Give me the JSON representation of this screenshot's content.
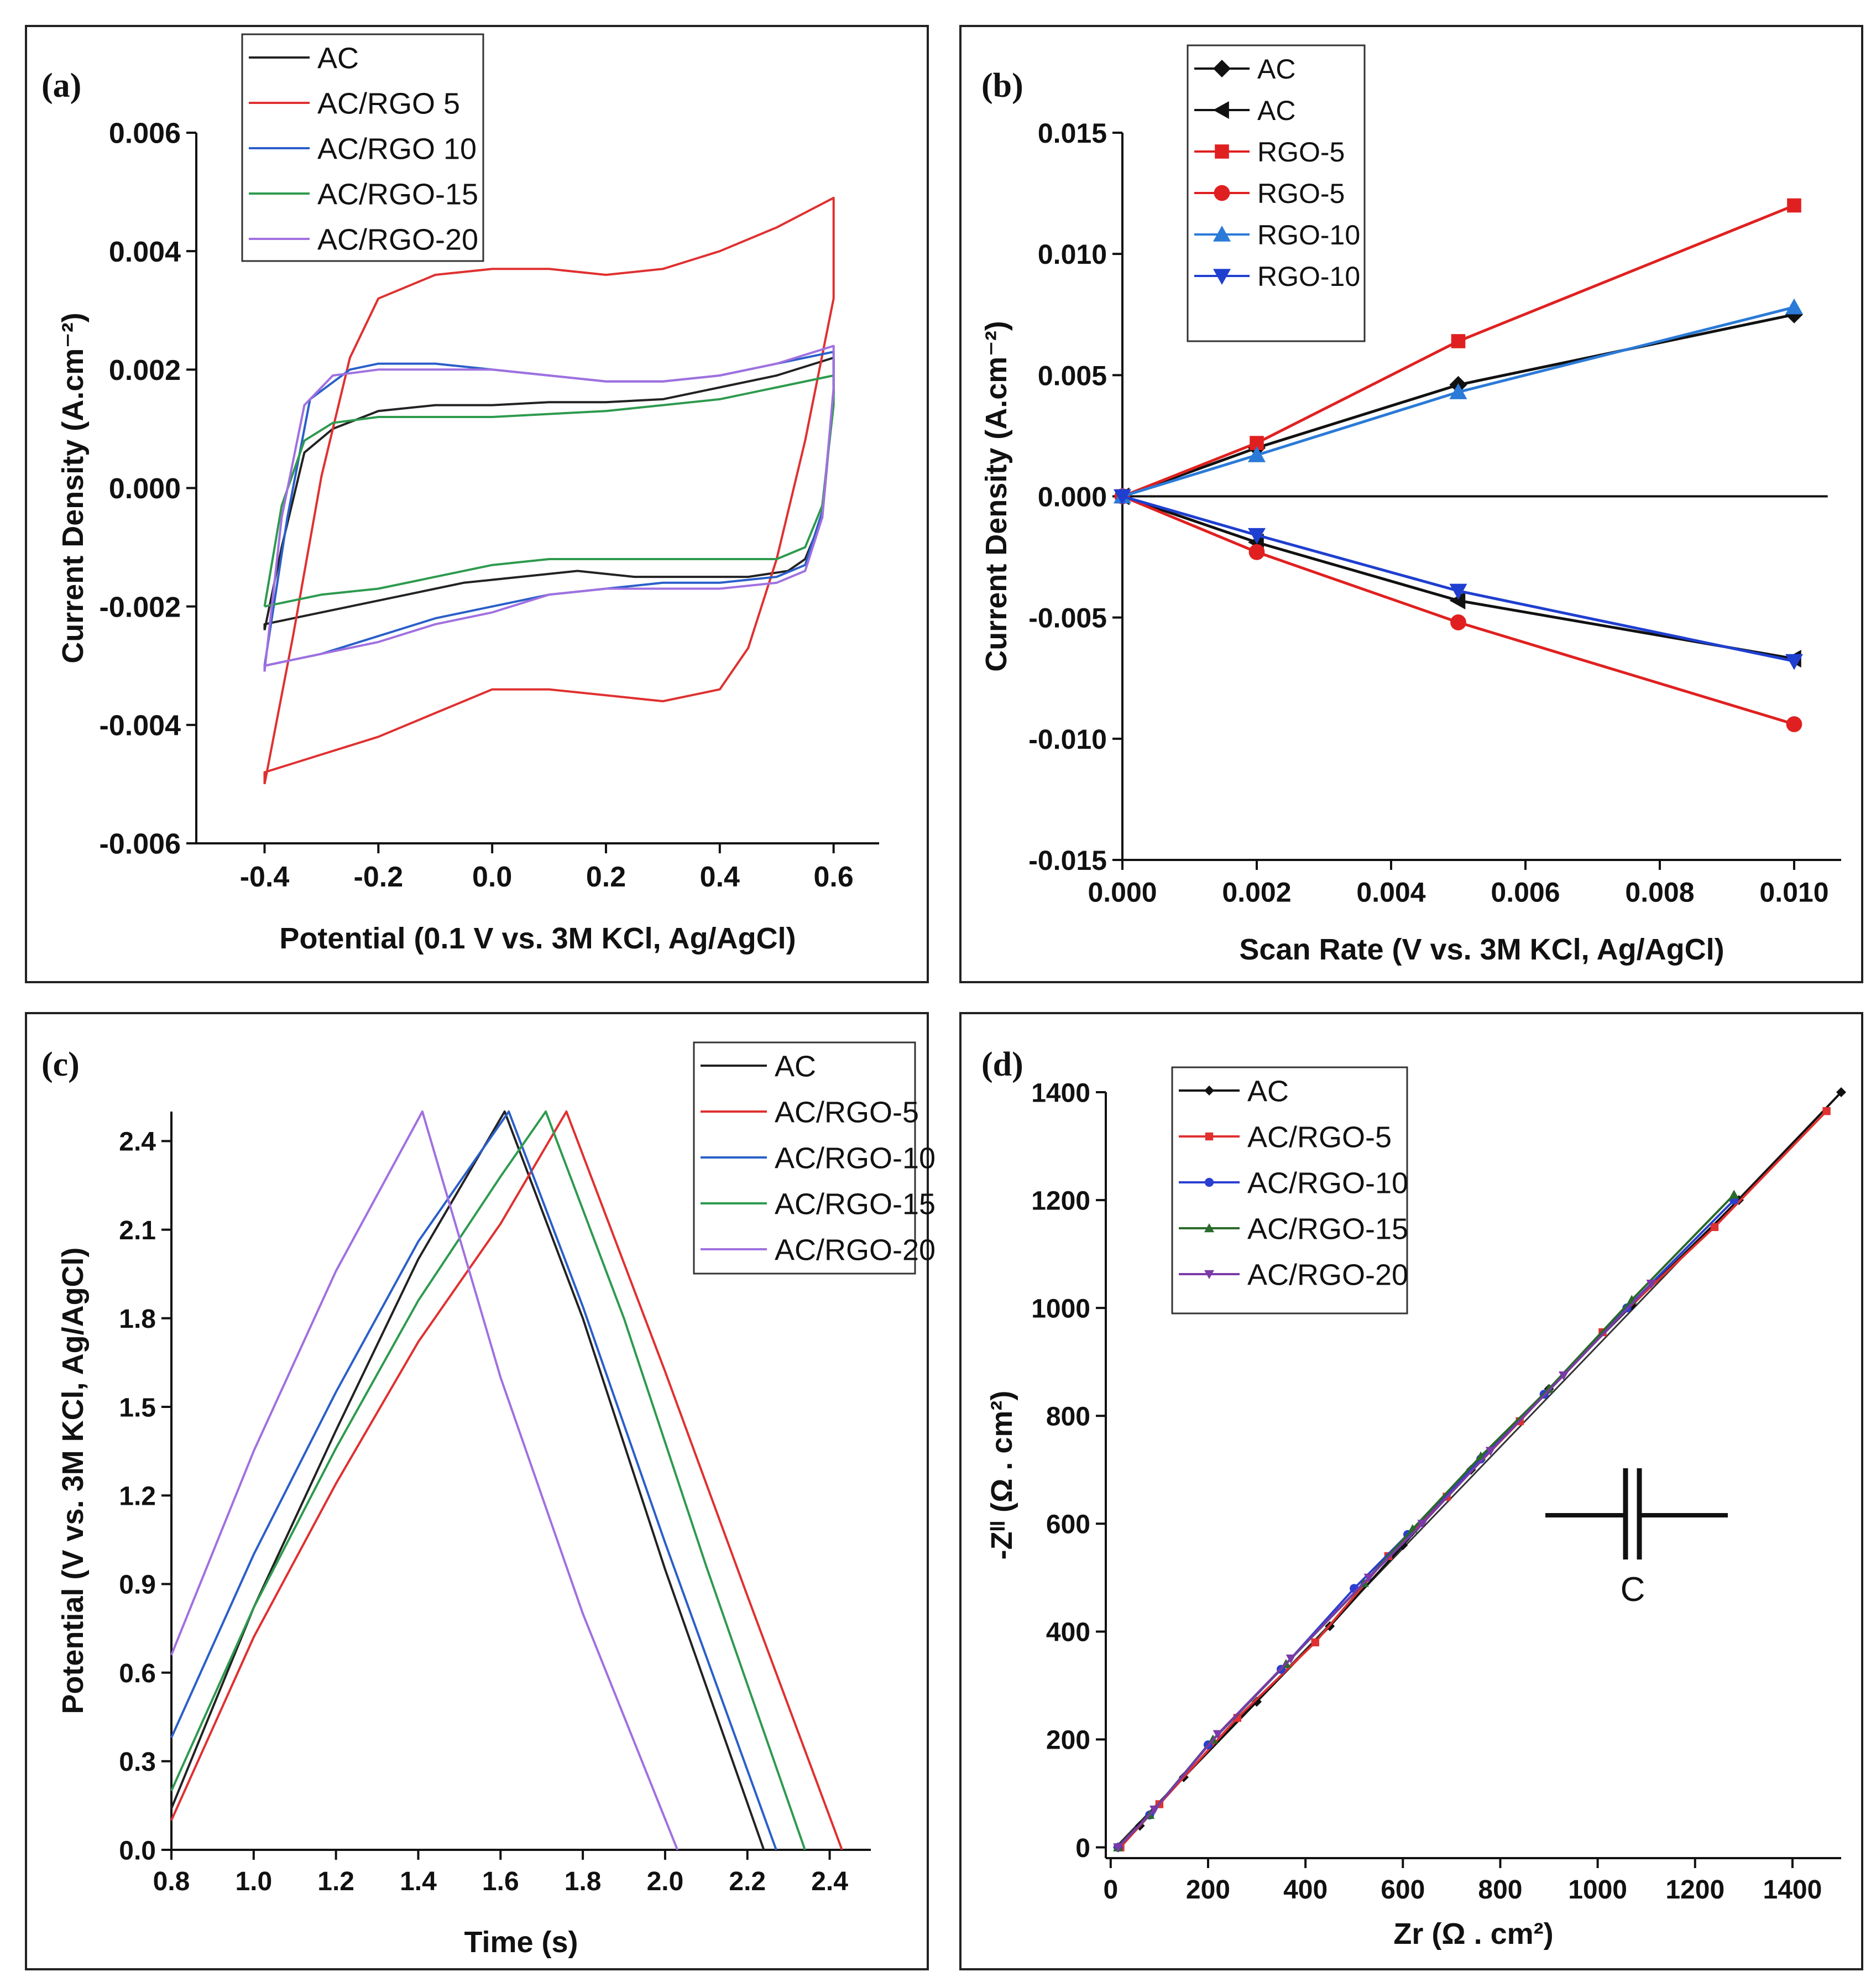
{
  "chart_data": [
    {
      "id": "a",
      "panel_label": "(a)",
      "type": "line",
      "xlabel": "Potential (0.1 V vs. 3M KCl, Ag/AgCl)",
      "ylabel": "Current Density (A.cm⁻²)",
      "xlim": [
        -0.52,
        0.68
      ],
      "ylim": [
        -0.006,
        0.006
      ],
      "xticks": [
        -0.4,
        -0.2,
        0.0,
        0.2,
        0.4,
        0.6
      ],
      "xtick_labels": [
        "-0.4",
        "-0.2",
        "0.0",
        "0.2",
        "0.4",
        "0.6"
      ],
      "yticks": [
        -0.006,
        -0.004,
        -0.002,
        0.0,
        0.002,
        0.004,
        0.006
      ],
      "ytick_labels": [
        "-0.006",
        "-0.004",
        "-0.002",
        "0.000",
        "0.002",
        "0.004",
        "0.006"
      ],
      "legend_position": "top-left",
      "series": [
        {
          "name": "AC",
          "color": "#222222",
          "x": [
            -0.4,
            -0.37,
            -0.33,
            -0.28,
            -0.2,
            -0.1,
            0.0,
            0.1,
            0.2,
            0.3,
            0.4,
            0.5,
            0.6,
            0.6,
            0.58,
            0.55,
            0.52,
            0.45,
            0.35,
            0.25,
            0.15,
            0.05,
            -0.05,
            -0.15,
            -0.25,
            -0.35,
            -0.4,
            -0.4
          ],
          "y": [
            -0.0024,
            -0.001,
            0.0006,
            0.001,
            0.0013,
            0.0014,
            0.0014,
            0.00145,
            0.00145,
            0.0015,
            0.0017,
            0.0019,
            0.0022,
            0.0016,
            -0.0005,
            -0.0012,
            -0.0014,
            -0.0015,
            -0.0015,
            -0.0015,
            -0.0014,
            -0.0015,
            -0.0016,
            -0.0018,
            -0.002,
            -0.0022,
            -0.0023,
            -0.0024
          ]
        },
        {
          "name": "AC/RGO 5",
          "color": "#e03030",
          "x": [
            -0.4,
            -0.35,
            -0.3,
            -0.25,
            -0.2,
            -0.1,
            0.0,
            0.1,
            0.2,
            0.3,
            0.4,
            0.5,
            0.6,
            0.6,
            0.55,
            0.5,
            0.45,
            0.4,
            0.3,
            0.2,
            0.1,
            0.0,
            -0.1,
            -0.2,
            -0.3,
            -0.4,
            -0.4
          ],
          "y": [
            -0.005,
            -0.0025,
            0.0002,
            0.0022,
            0.0032,
            0.0036,
            0.0037,
            0.0037,
            0.0036,
            0.0037,
            0.004,
            0.0044,
            0.0049,
            0.0032,
            0.0008,
            -0.0012,
            -0.0027,
            -0.0034,
            -0.0036,
            -0.0035,
            -0.0034,
            -0.0034,
            -0.0038,
            -0.0042,
            -0.0045,
            -0.0048,
            -0.005
          ]
        },
        {
          "name": "AC/RGO 10",
          "color": "#2a5fc9",
          "x": [
            -0.4,
            -0.36,
            -0.32,
            -0.25,
            -0.2,
            -0.1,
            0.0,
            0.1,
            0.2,
            0.3,
            0.4,
            0.5,
            0.6,
            0.6,
            0.58,
            0.55,
            0.5,
            0.4,
            0.3,
            0.2,
            0.1,
            0.0,
            -0.1,
            -0.2,
            -0.3,
            -0.4,
            -0.4
          ],
          "y": [
            -0.003,
            -0.0005,
            0.0015,
            0.002,
            0.0021,
            0.0021,
            0.002,
            0.0019,
            0.0018,
            0.0018,
            0.0019,
            0.0021,
            0.0023,
            0.0016,
            -0.0004,
            -0.0013,
            -0.0015,
            -0.0016,
            -0.0016,
            -0.0017,
            -0.0018,
            -0.002,
            -0.0022,
            -0.0025,
            -0.0028,
            -0.003,
            -0.003
          ]
        },
        {
          "name": "AC/RGO-15",
          "color": "#2e9a4e",
          "x": [
            -0.4,
            -0.37,
            -0.33,
            -0.28,
            -0.2,
            -0.1,
            0.0,
            0.1,
            0.2,
            0.3,
            0.4,
            0.5,
            0.6,
            0.6,
            0.58,
            0.55,
            0.5,
            0.4,
            0.3,
            0.2,
            0.1,
            0.0,
            -0.1,
            -0.2,
            -0.3,
            -0.4,
            -0.4
          ],
          "y": [
            -0.002,
            -0.0003,
            0.0008,
            0.0011,
            0.0012,
            0.0012,
            0.0012,
            0.00125,
            0.0013,
            0.0014,
            0.0015,
            0.0017,
            0.0019,
            0.0014,
            -0.0003,
            -0.001,
            -0.0012,
            -0.0012,
            -0.0012,
            -0.0012,
            -0.0012,
            -0.0013,
            -0.0015,
            -0.0017,
            -0.0018,
            -0.002,
            -0.002
          ]
        },
        {
          "name": "AC/RGO-20",
          "color": "#a070e0",
          "x": [
            -0.4,
            -0.37,
            -0.33,
            -0.28,
            -0.2,
            -0.1,
            0.0,
            0.1,
            0.2,
            0.3,
            0.4,
            0.5,
            0.6,
            0.6,
            0.58,
            0.55,
            0.5,
            0.4,
            0.3,
            0.2,
            0.1,
            0.0,
            -0.1,
            -0.2,
            -0.3,
            -0.4,
            -0.4
          ],
          "y": [
            -0.0031,
            -0.0005,
            0.0014,
            0.0019,
            0.002,
            0.002,
            0.002,
            0.0019,
            0.0018,
            0.0018,
            0.0019,
            0.0021,
            0.0024,
            0.0017,
            -0.0005,
            -0.0014,
            -0.0016,
            -0.0017,
            -0.0017,
            -0.0017,
            -0.0018,
            -0.0021,
            -0.0023,
            -0.0026,
            -0.0028,
            -0.003,
            -0.0031
          ]
        }
      ]
    },
    {
      "id": "b",
      "panel_label": "(b)",
      "type": "line",
      "xlabel": "Scan Rate (V vs. 3M KCl, Ag/AgCl)",
      "ylabel": "Current Density (A.cm⁻²)",
      "xlim": [
        0.0,
        0.0107
      ],
      "ylim": [
        -0.015,
        0.015
      ],
      "xticks": [
        0.0,
        0.002,
        0.004,
        0.006,
        0.008,
        0.01
      ],
      "xtick_labels": [
        "0.000",
        "0.002",
        "0.004",
        "0.006",
        "0.008",
        "0.010"
      ],
      "yticks": [
        -0.015,
        -0.01,
        -0.005,
        0.0,
        0.005,
        0.01,
        0.015
      ],
      "ytick_labels": [
        "-0.015",
        "-0.010",
        "-0.005",
        "0.000",
        "0.005",
        "0.010",
        "0.015"
      ],
      "legend_position": "top-left",
      "zero_line": true,
      "series": [
        {
          "name": "AC",
          "color": "#111111",
          "marker": "diamond",
          "x": [
            0.0,
            0.002,
            0.005,
            0.01
          ],
          "y": [
            0.0,
            0.002,
            0.0046,
            0.0075
          ]
        },
        {
          "name": "AC",
          "color": "#111111",
          "marker": "triangle-left",
          "x": [
            0.0,
            0.002,
            0.005,
            0.01
          ],
          "y": [
            0.0,
            -0.0019,
            -0.0043,
            -0.0067
          ]
        },
        {
          "name": "RGO-5",
          "color": "#e02020",
          "marker": "square",
          "x": [
            0.0,
            0.002,
            0.005,
            0.01
          ],
          "y": [
            0.0,
            0.0022,
            0.0064,
            0.012
          ]
        },
        {
          "name": "RGO-5",
          "color": "#e02020",
          "marker": "circle",
          "x": [
            0.0,
            0.002,
            0.005,
            0.01
          ],
          "y": [
            0.0,
            -0.0023,
            -0.0052,
            -0.0094
          ]
        },
        {
          "name": "RGO-10",
          "color": "#2a7ad8",
          "marker": "triangle-up",
          "x": [
            0.0,
            0.002,
            0.005,
            0.01
          ],
          "y": [
            0.0,
            0.0017,
            0.0043,
            0.0078
          ]
        },
        {
          "name": "RGO-10",
          "color": "#1f3fd0",
          "marker": "triangle-down",
          "x": [
            0.0,
            0.002,
            0.005,
            0.01
          ],
          "y": [
            0.0,
            -0.0016,
            -0.0039,
            -0.0068
          ]
        }
      ]
    },
    {
      "id": "c",
      "panel_label": "(c)",
      "type": "line",
      "xlabel": "Time (s)",
      "ylabel": "Potential (V vs. 3M KCl, Ag/AgCl)",
      "xlim": [
        0.8,
        2.5
      ],
      "ylim": [
        0.0,
        2.5
      ],
      "xticks": [
        0.8,
        1.0,
        1.2,
        1.4,
        1.6,
        1.8,
        2.0,
        2.2,
        2.4
      ],
      "xtick_labels": [
        "0.8",
        "1.0",
        "1.2",
        "1.4",
        "1.6",
        "1.8",
        "2.0",
        "2.2",
        "2.4"
      ],
      "yticks": [
        0.0,
        0.3,
        0.6,
        0.9,
        1.2,
        1.5,
        1.8,
        2.1,
        2.4
      ],
      "ytick_labels": [
        "0.0",
        "0.3",
        "0.6",
        "0.9",
        "1.2",
        "1.5",
        "1.8",
        "2.1",
        "2.4"
      ],
      "legend_position": "top-right",
      "series": [
        {
          "name": "AC",
          "color": "#222222",
          "x": [
            0.8,
            1.0,
            1.2,
            1.4,
            1.61,
            1.8,
            2.0,
            2.24
          ],
          "y": [
            0.14,
            0.82,
            1.42,
            2.0,
            2.5,
            1.8,
            0.95,
            0.0
          ]
        },
        {
          "name": "AC/RGO-5",
          "color": "#e03030",
          "x": [
            0.8,
            1.0,
            1.2,
            1.4,
            1.6,
            1.76,
            2.0,
            2.2,
            2.43
          ],
          "y": [
            0.1,
            0.72,
            1.24,
            1.72,
            2.12,
            2.5,
            1.62,
            0.86,
            0.0
          ]
        },
        {
          "name": "AC/RGO-10",
          "color": "#2a5fc9",
          "x": [
            0.8,
            1.0,
            1.2,
            1.4,
            1.62,
            1.8,
            2.0,
            2.27
          ],
          "y": [
            0.38,
            1.0,
            1.55,
            2.06,
            2.5,
            1.84,
            1.04,
            0.0
          ]
        },
        {
          "name": "AC/RGO-15",
          "color": "#2e9a4e",
          "x": [
            0.8,
            1.0,
            1.2,
            1.4,
            1.6,
            1.71,
            1.9,
            2.1,
            2.34
          ],
          "y": [
            0.2,
            0.82,
            1.36,
            1.86,
            2.28,
            2.5,
            1.8,
            0.96,
            0.0
          ]
        },
        {
          "name": "AC/RGO-20",
          "color": "#a070e0",
          "x": [
            0.8,
            1.0,
            1.2,
            1.41,
            1.6,
            1.8,
            2.03
          ],
          "y": [
            0.66,
            1.35,
            1.96,
            2.5,
            1.6,
            0.8,
            0.0
          ]
        }
      ]
    },
    {
      "id": "d",
      "panel_label": "(d)",
      "type": "line",
      "xlabel": "Zr (Ω . cm²)",
      "ylabel": "-Zᴵᴵ (Ω . cm²)",
      "xlim": [
        -10,
        1500
      ],
      "ylim": [
        -20,
        1400
      ],
      "xticks": [
        0,
        200,
        400,
        600,
        800,
        1000,
        1200,
        1400
      ],
      "xtick_labels": [
        "0",
        "200",
        "400",
        "600",
        "800",
        "1000",
        "1200",
        "1400"
      ],
      "yticks": [
        0,
        200,
        400,
        600,
        800,
        1000,
        1200,
        1400
      ],
      "ytick_labels": [
        "0",
        "200",
        "400",
        "600",
        "800",
        "1000",
        "1200",
        "1400"
      ],
      "legend_position": "top-left",
      "annotation": "C",
      "series": [
        {
          "name": "AC",
          "color": "#111111",
          "marker": "diamond",
          "x": [
            15,
            60,
            150,
            300,
            450,
            600,
            740,
            900,
            1070,
            1290,
            1500
          ],
          "y": [
            0,
            40,
            130,
            270,
            410,
            560,
            700,
            850,
            1005,
            1200,
            1400
          ]
        },
        {
          "name": "AC/RGO-5",
          "color": "#e03030",
          "marker": "square",
          "x": [
            20,
            100,
            260,
            420,
            570,
            690,
            840,
            1010,
            1240,
            1470
          ],
          "y": [
            0,
            80,
            240,
            380,
            540,
            650,
            790,
            955,
            1150,
            1365
          ]
        },
        {
          "name": "AC/RGO-10",
          "color": "#2a3fd0",
          "marker": "circle",
          "x": [
            15,
            80,
            200,
            350,
            500,
            610,
            760,
            890,
            1060,
            1280
          ],
          "y": [
            0,
            60,
            190,
            330,
            480,
            580,
            720,
            840,
            1000,
            1200
          ]
        },
        {
          "name": "AC/RGO-15",
          "color": "#2a6a2a",
          "marker": "triangle-up",
          "x": [
            15,
            80,
            210,
            360,
            520,
            620,
            760,
            900,
            1070,
            1280
          ],
          "y": [
            0,
            60,
            200,
            340,
            490,
            590,
            725,
            850,
            1015,
            1210
          ]
        },
        {
          "name": "AC/RGO-20",
          "color": "#7a3aa8",
          "marker": "triangle-down",
          "x": [
            15,
            90,
            220,
            370,
            530,
            640,
            780,
            930,
            1110
          ],
          "y": [
            0,
            70,
            210,
            350,
            500,
            600,
            735,
            875,
            1045
          ]
        }
      ]
    }
  ]
}
